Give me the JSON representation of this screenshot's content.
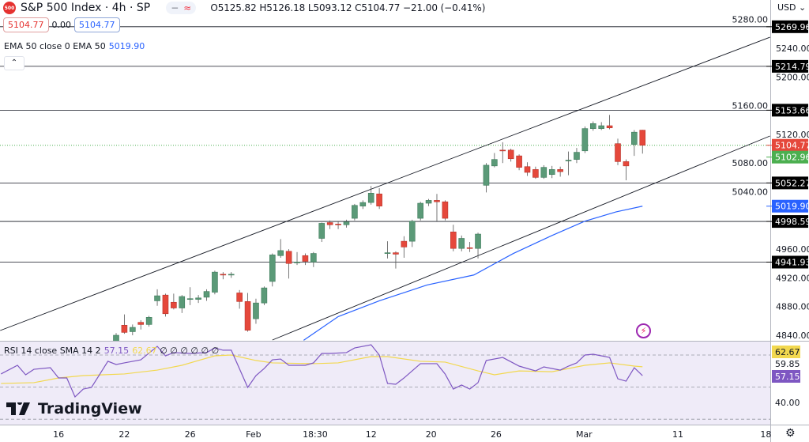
{
  "header": {
    "symbol_badge": "500",
    "title": "S&P 500 Index · 4h · SP",
    "pill_left": "−",
    "pill_right": "≈",
    "ohlc": "O5125.82 H5126.18 L5093.12 C5104.77 −21.00 (−0.41%)",
    "sell": "5104.77",
    "spread": "0.00",
    "buy": "5104.77"
  },
  "ema_legend": {
    "label": "EMA 50 close 0 EMA 50",
    "value": "5019.90"
  },
  "collapse_icon": "chevron-up-icon",
  "rsi_legend": {
    "label": "RSI 14 close SMA 14 2",
    "rsi": "57.15",
    "sma": "62.67",
    "extras": "∅ ∅ ∅ ∅ ∅ ∅"
  },
  "currency": "USD ⌄",
  "brand": "TradingView",
  "colors": {
    "up": "#5b9a78",
    "down": "#e5483b",
    "ema": "#2962ff",
    "rsi": "#7e57c2",
    "rsi_sma": "#f2d84f",
    "level": "#131722"
  },
  "chart_data": {
    "type": "candlestick",
    "price_ticks": [
      5280,
      5240,
      5200,
      5160,
      5120,
      5080,
      5040,
      4960,
      4920,
      4880,
      4840
    ],
    "levels": [
      5269.96,
      5214.79,
      5153.66,
      5052.27,
      4998.59,
      4941.93
    ],
    "last_price": "5104.77",
    "bid_price": "5102.96",
    "ema_last": "5019.90",
    "x_ticks": [
      {
        "label": "16",
        "bar": -7
      },
      {
        "label": "22",
        "bar": 1
      },
      {
        "label": "26",
        "bar": 9
      },
      {
        "label": "Feb",
        "bar": 16.7
      },
      {
        "label": "18:30",
        "bar": 24.2
      },
      {
        "label": "12",
        "bar": 31
      },
      {
        "label": "20",
        "bar": 38.3
      },
      {
        "label": "26",
        "bar": 46.2
      },
      {
        "label": "Mar",
        "bar": 56.9
      },
      {
        "label": "11",
        "bar": 68.3
      },
      {
        "label": "18",
        "bar": 79
      }
    ],
    "candles": [
      [
        4831,
        4843,
        4828,
        4840
      ],
      [
        4854,
        4869,
        4842,
        4844
      ],
      [
        4845,
        4855,
        4840,
        4851
      ],
      [
        4858,
        4861,
        4848,
        4855
      ],
      [
        4855,
        4867,
        4852,
        4865
      ],
      [
        4888,
        4904,
        4881,
        4895
      ],
      [
        4896,
        4898,
        4866,
        4870
      ],
      [
        4886,
        4898,
        4876,
        4878
      ],
      [
        4878,
        4896,
        4871,
        4894
      ],
      [
        4890,
        4907,
        4882,
        4891
      ],
      [
        4890,
        4896,
        4885,
        4892
      ],
      [
        4893,
        4904,
        4888,
        4901
      ],
      [
        4900,
        4930,
        4897,
        4928
      ],
      [
        4925,
        4928,
        4918,
        4924
      ],
      [
        4924,
        4928,
        4920,
        4925
      ],
      [
        4899,
        4903,
        4877,
        4887
      ],
      [
        4887,
        4899,
        4845,
        4847
      ],
      [
        4863,
        4891,
        4856,
        4885
      ],
      [
        4885,
        4908,
        4882,
        4906
      ],
      [
        4915,
        4954,
        4908,
        4952
      ],
      [
        4951,
        4974,
        4948,
        4958
      ],
      [
        4957,
        4960,
        4919,
        4940
      ],
      [
        4941,
        4956,
        4938,
        4942
      ],
      [
        4951,
        4954,
        4938,
        4943
      ],
      [
        4942,
        4956,
        4935,
        4954
      ],
      [
        4975,
        4997,
        4970,
        4996
      ],
      [
        4997,
        5000,
        4988,
        4994
      ],
      [
        4995,
        4998,
        4988,
        4994
      ],
      [
        4994,
        5001,
        4990,
        4998
      ],
      [
        5003,
        5023,
        5000,
        5021
      ],
      [
        5020,
        5028,
        5016,
        5025
      ],
      [
        5025,
        5048,
        5022,
        5038
      ],
      [
        5037,
        5045,
        5016,
        5020
      ],
      [
        4955,
        4971,
        4947,
        4955
      ],
      [
        4955,
        4957,
        4933,
        4953
      ],
      [
        4971,
        4978,
        4948,
        4963
      ],
      [
        4971,
        5001,
        4963,
        4999
      ],
      [
        5003,
        5026,
        5000,
        5024
      ],
      [
        5024,
        5030,
        5020,
        5028
      ],
      [
        5028,
        5037,
        4999,
        5026
      ],
      [
        5026,
        5028,
        5000,
        5003
      ],
      [
        4984,
        4994,
        4957,
        4961
      ],
      [
        4961,
        4979,
        4957,
        4975
      ],
      [
        4962,
        4970,
        4956,
        4961
      ],
      [
        4961,
        4983,
        4947,
        4981
      ],
      [
        5049,
        5080,
        5039,
        5077
      ],
      [
        5076,
        5094,
        5074,
        5085
      ],
      [
        5098,
        5109,
        5080,
        5097
      ],
      [
        5098,
        5100,
        5082,
        5086
      ],
      [
        5090,
        5092,
        5070,
        5074
      ],
      [
        5075,
        5081,
        5062,
        5067
      ],
      [
        5071,
        5075,
        5058,
        5060
      ],
      [
        5060,
        5077,
        5058,
        5074
      ],
      [
        5064,
        5076,
        5059,
        5071
      ],
      [
        5071,
        5075,
        5061,
        5068
      ],
      [
        5084,
        5096,
        5063,
        5084
      ],
      [
        5085,
        5101,
        5080,
        5095
      ],
      [
        5097,
        5131,
        5094,
        5128
      ],
      [
        5128,
        5138,
        5125,
        5135
      ],
      [
        5128,
        5137,
        5126,
        5132
      ],
      [
        5132,
        5147,
        5127,
        5129
      ],
      [
        5107,
        5114,
        5077,
        5082
      ],
      [
        5082,
        5085,
        5056,
        5076
      ],
      [
        5106,
        5126,
        5090,
        5123
      ],
      [
        5125.82,
        5126.18,
        5093.12,
        5104.77
      ]
    ],
    "ema50": [
      [
        22.8,
        4833
      ],
      [
        27,
        4866
      ],
      [
        32,
        4888
      ],
      [
        37.8,
        4910
      ],
      [
        43.5,
        4924
      ],
      [
        48.3,
        4954
      ],
      [
        53,
        4979
      ],
      [
        57,
        4999
      ],
      [
        60.8,
        5012
      ],
      [
        64,
        5019.9
      ]
    ],
    "channel": [
      {
        "from": [
          -14.1,
          4846.6
        ],
        "to": [
          79.5,
          5255.4
        ]
      },
      {
        "from": [
          19,
          4833.4
        ],
        "to": [
          79.5,
          5117.7
        ]
      }
    ],
    "rsi": {
      "ticks": [
        70,
        50,
        30
      ],
      "labels": [
        "62.67",
        "59.85",
        "57.15",
        "40.00"
      ],
      "values": [
        [
          -14,
          58.2
        ],
        [
          -12,
          63.6
        ],
        [
          -11,
          57.7
        ],
        [
          -10,
          61.1
        ],
        [
          -8,
          62.1
        ],
        [
          -7,
          55.7
        ],
        [
          -6,
          55.7
        ],
        [
          -5,
          43.9
        ],
        [
          -4,
          48.8
        ],
        [
          -3,
          49.8
        ],
        [
          -1,
          66.1
        ],
        [
          0,
          64.1
        ],
        [
          1,
          65.1
        ],
        [
          3,
          67
        ],
        [
          5,
          75.4
        ],
        [
          6,
          69.5
        ],
        [
          7,
          71.5
        ],
        [
          9,
          71
        ],
        [
          11,
          71.5
        ],
        [
          12,
          74.4
        ],
        [
          13,
          73
        ],
        [
          14,
          73
        ],
        [
          16,
          49.8
        ],
        [
          17,
          57.2
        ],
        [
          18,
          61.6
        ],
        [
          19,
          67
        ],
        [
          20,
          67.5
        ],
        [
          21,
          63.6
        ],
        [
          23,
          63.6
        ],
        [
          24,
          65.1
        ],
        [
          25,
          71
        ],
        [
          26,
          71
        ],
        [
          28,
          71.5
        ],
        [
          29,
          74.4
        ],
        [
          31,
          76.4
        ],
        [
          32,
          70
        ],
        [
          33,
          52.3
        ],
        [
          34,
          51.8
        ],
        [
          35,
          55.7
        ],
        [
          37,
          64.6
        ],
        [
          39,
          64.6
        ],
        [
          40,
          58.2
        ],
        [
          41,
          48.8
        ],
        [
          42,
          51.3
        ],
        [
          43,
          48.8
        ],
        [
          44,
          52.8
        ],
        [
          45,
          66.6
        ],
        [
          47,
          68.5
        ],
        [
          49,
          63.1
        ],
        [
          51,
          60.1
        ],
        [
          52,
          62.6
        ],
        [
          54,
          60.6
        ],
        [
          55,
          63.1
        ],
        [
          56,
          65.1
        ],
        [
          57,
          70
        ],
        [
          58,
          70.5
        ],
        [
          60,
          68.5
        ],
        [
          61,
          55.2
        ],
        [
          62,
          53.7
        ],
        [
          63,
          62.1
        ],
        [
          64,
          57.15
        ]
      ],
      "sma": [
        [
          -14,
          52.3
        ],
        [
          -10,
          52.8
        ],
        [
          -7,
          55.7
        ],
        [
          -4,
          57.2
        ],
        [
          1,
          58.2
        ],
        [
          5,
          60.6
        ],
        [
          8,
          63.6
        ],
        [
          10,
          66.6
        ],
        [
          12,
          69.5
        ],
        [
          14,
          70
        ],
        [
          17,
          66.6
        ],
        [
          19,
          65.1
        ],
        [
          24,
          64.6
        ],
        [
          27,
          65.1
        ],
        [
          31,
          69
        ],
        [
          33,
          69
        ],
        [
          37,
          66.1
        ],
        [
          40,
          65.6
        ],
        [
          44,
          60.1
        ],
        [
          46,
          57.7
        ],
        [
          49,
          60.1
        ],
        [
          53,
          59.6
        ],
        [
          57,
          63.6
        ],
        [
          60,
          65.1
        ],
        [
          63,
          63.1
        ],
        [
          64,
          62.67
        ]
      ]
    }
  }
}
